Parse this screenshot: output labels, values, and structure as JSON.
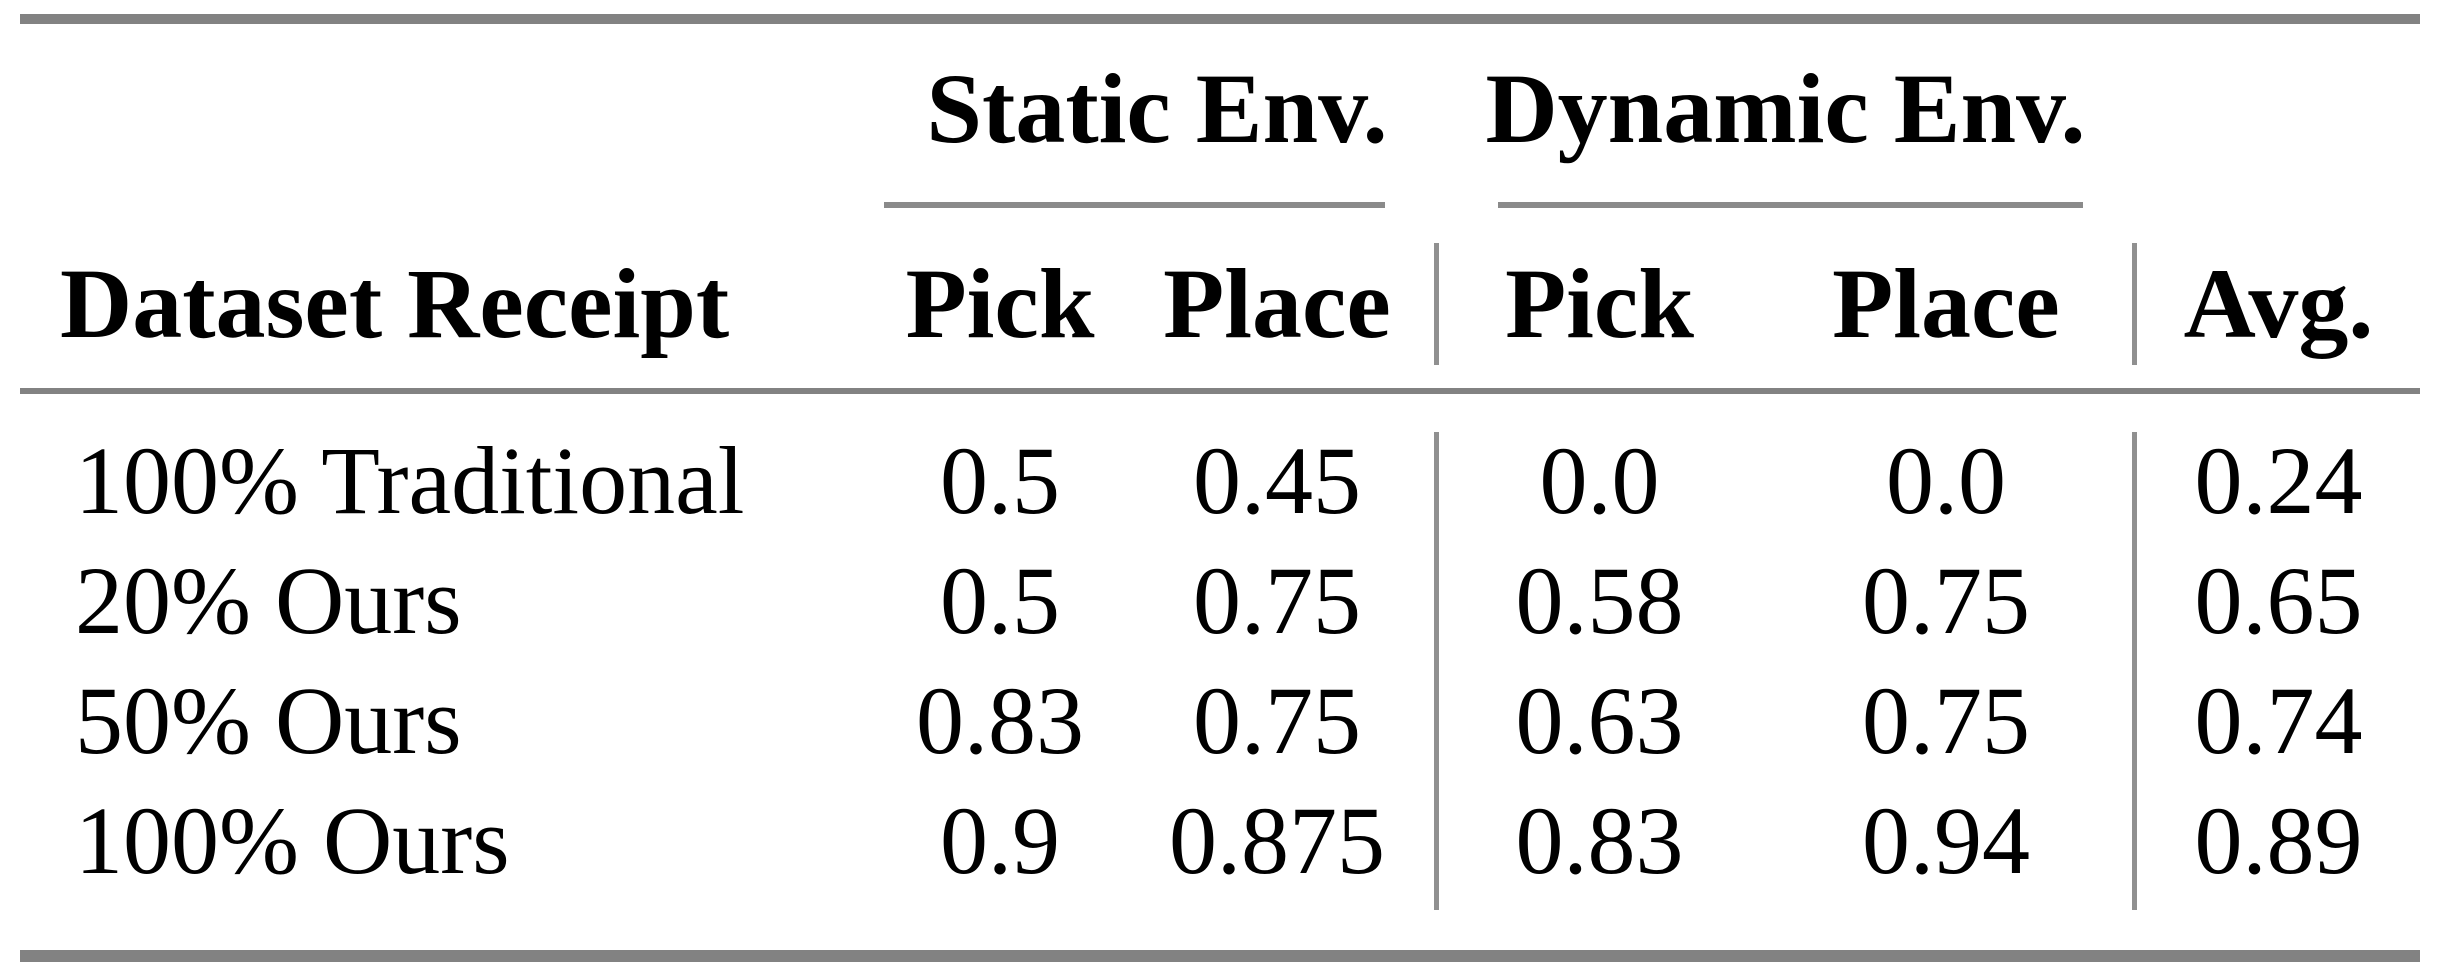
{
  "table": {
    "group_headers": {
      "static": "Static Env.",
      "dynamic": "Dynamic Env."
    },
    "column_headers": {
      "dataset": "Dataset Receipt",
      "static_pick": "Pick",
      "static_place": "Place",
      "dynamic_pick": "Pick",
      "dynamic_place": "Place",
      "avg": "Avg."
    },
    "rows": [
      {
        "label": "100% Traditional",
        "static_pick": "0.5",
        "static_place": "0.45",
        "dynamic_pick": "0.0",
        "dynamic_place": "0.0",
        "avg": "0.24"
      },
      {
        "label": "20% Ours",
        "static_pick": "0.5",
        "static_place": "0.75",
        "dynamic_pick": "0.58",
        "dynamic_place": "0.75",
        "avg": "0.65"
      },
      {
        "label": "50% Ours",
        "static_pick": "0.83",
        "static_place": "0.75",
        "dynamic_pick": "0.63",
        "dynamic_place": "0.75",
        "avg": "0.74"
      },
      {
        "label": "100% Ours",
        "static_pick": "0.9",
        "static_place": "0.875",
        "dynamic_pick": "0.83",
        "dynamic_place": "0.94",
        "avg": "0.89"
      }
    ]
  },
  "colors": {
    "horizontal_rule": "#828282",
    "cmidrule": "#8a8a8a",
    "vertical_bar": "#909090",
    "text": "#000000",
    "background": "#ffffff"
  },
  "chart_data": {
    "type": "table",
    "title": "",
    "column_groups": [
      "",
      "Static Env.",
      "Static Env.",
      "Dynamic Env.",
      "Dynamic Env.",
      ""
    ],
    "columns": [
      "Dataset Receipt",
      "Pick",
      "Place",
      "Pick",
      "Place",
      "Avg."
    ],
    "rows": [
      [
        "100% Traditional",
        0.5,
        0.45,
        0.0,
        0.0,
        0.24
      ],
      [
        "20% Ours",
        0.5,
        0.75,
        0.58,
        0.75,
        0.65
      ],
      [
        "50% Ours",
        0.83,
        0.75,
        0.63,
        0.75,
        0.74
      ],
      [
        "100% Ours",
        0.9,
        0.875,
        0.83,
        0.94,
        0.89
      ]
    ]
  }
}
